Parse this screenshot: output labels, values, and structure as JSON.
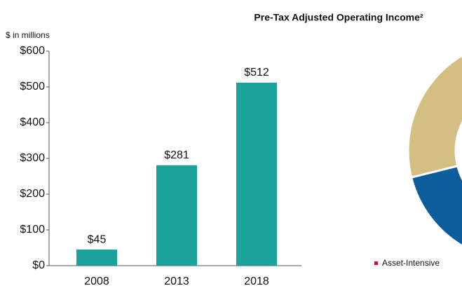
{
  "chart_data": {
    "type": "bar",
    "title": "Pre-Tax Adjusted Operating Income²",
    "y_axis_label": "$ in millions",
    "categories": [
      "2008",
      "2013",
      "2018"
    ],
    "values": [
      45,
      281,
      512
    ],
    "value_labels": [
      "$45",
      "$281",
      "$512"
    ],
    "color": "#1ba39b",
    "ylim": [
      0,
      600
    ],
    "yticks": [
      {
        "value": 0,
        "label": "$0"
      },
      {
        "value": 100,
        "label": "$100"
      },
      {
        "value": 200,
        "label": "$200"
      },
      {
        "value": 300,
        "label": "$300"
      },
      {
        "value": 400,
        "label": "$400"
      },
      {
        "value": 500,
        "label": "$500"
      },
      {
        "value": 600,
        "label": "$600"
      }
    ],
    "grid": false,
    "legend": [
      "Asset-Intensive"
    ]
  }
}
